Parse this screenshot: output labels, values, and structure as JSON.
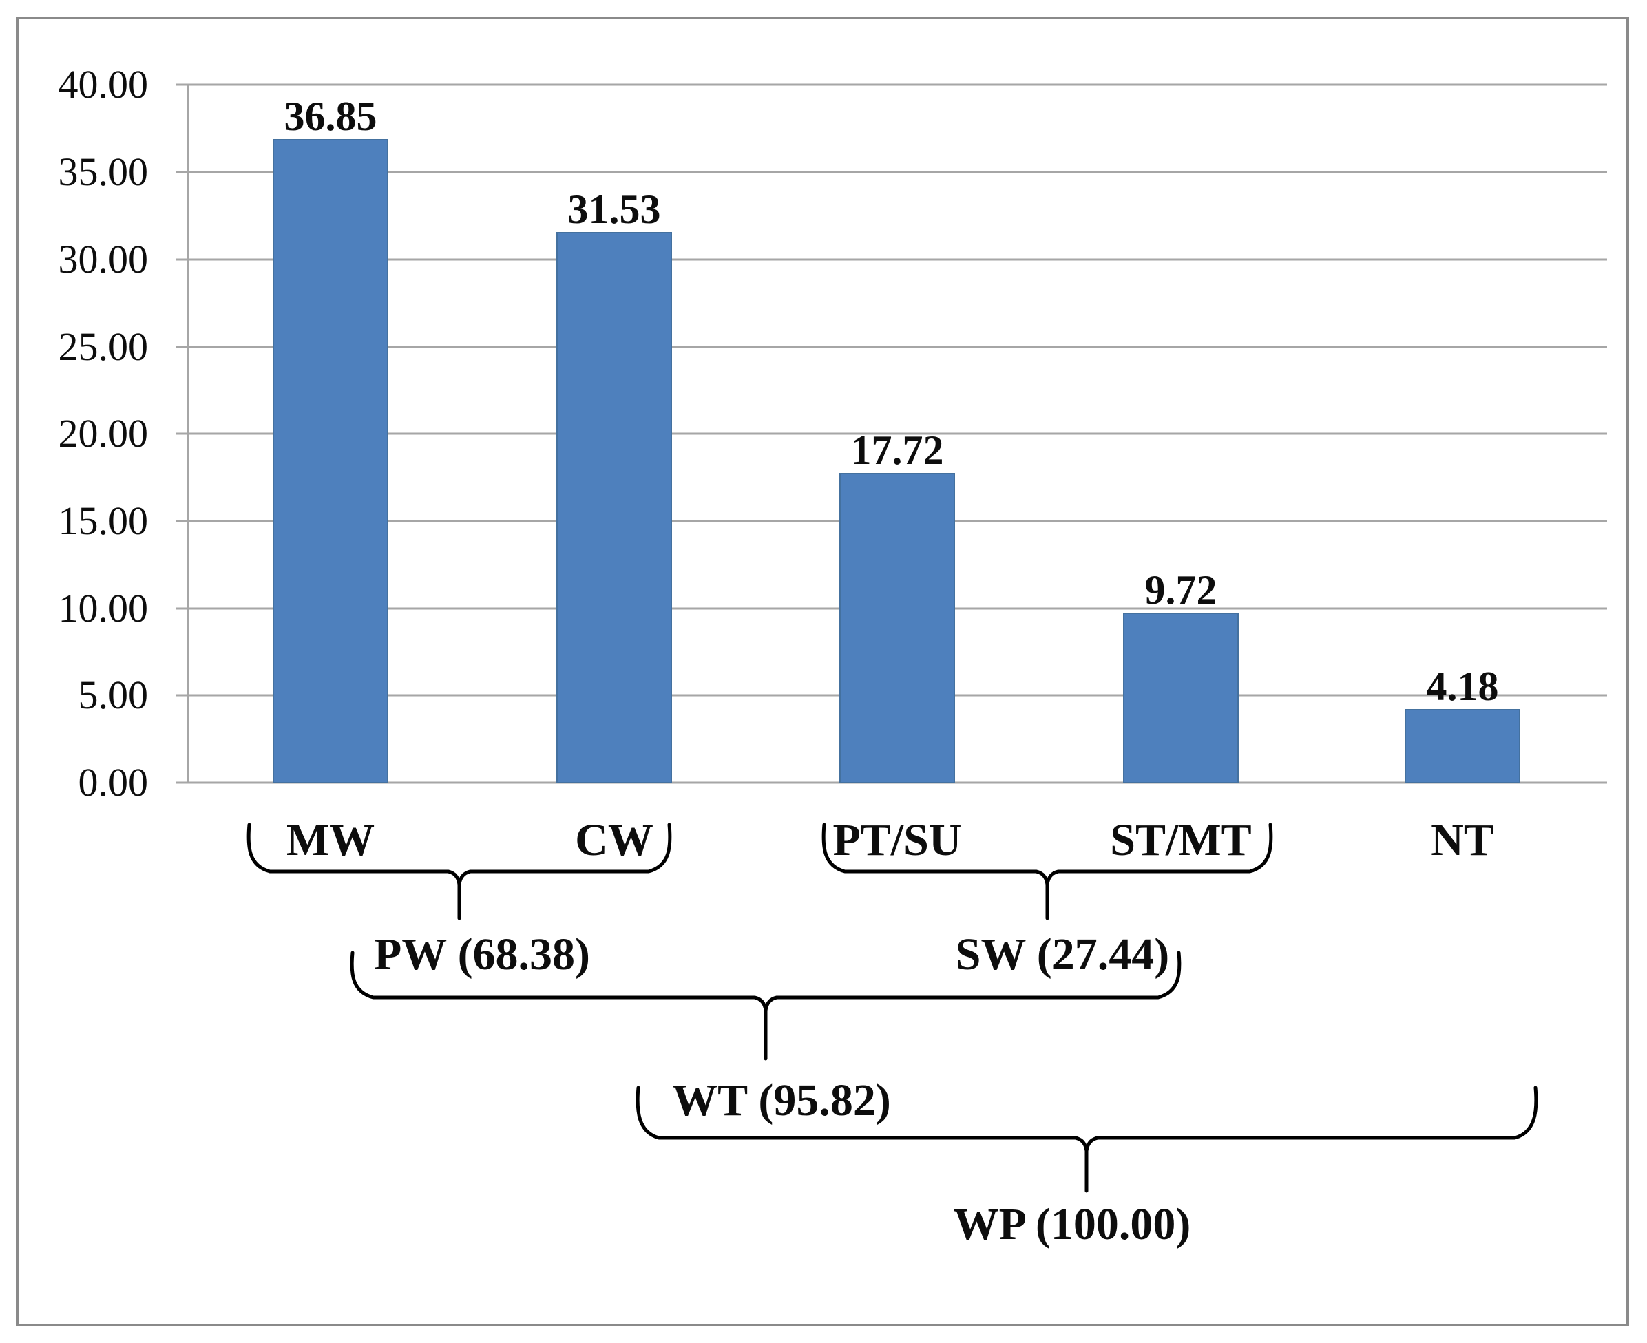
{
  "colors": {
    "bar": "#4e80bd",
    "bar_edge": "#44719f",
    "grid": "#a6a6a6",
    "axis": "#a6a6a6",
    "frame": "#8a8a8a",
    "text": "#0d0d0d",
    "brace": "#000000"
  },
  "chart_data": {
    "type": "bar",
    "categories": [
      "MW",
      "CW",
      "PT/SU",
      "ST/MT",
      "NT"
    ],
    "values": [
      36.85,
      31.53,
      17.72,
      9.72,
      4.18
    ],
    "value_labels": [
      "36.85",
      "31.53",
      "17.72",
      "9.72",
      "4.18"
    ],
    "title": "",
    "xlabel": "",
    "ylabel": "",
    "ylim": [
      0,
      40
    ],
    "ytick_step": 5,
    "ytick_labels": [
      "0.00",
      "5.00",
      "10.00",
      "15.00",
      "20.00",
      "25.00",
      "30.00",
      "35.00",
      "40.00"
    ],
    "grid": true,
    "legend": false,
    "annotations": {
      "groups": [
        {
          "name": "PW",
          "value": 68.38,
          "label": "PW (68.38)",
          "spans": [
            "MW",
            "CW"
          ]
        },
        {
          "name": "SW",
          "value": 27.44,
          "label": "SW (27.44)",
          "spans": [
            "PT/SU",
            "ST/MT"
          ]
        },
        {
          "name": "WT",
          "value": 95.82,
          "label": "WT (95.82)",
          "spans": [
            "PW",
            "SW"
          ]
        },
        {
          "name": "WP",
          "value": 100.0,
          "label": "WP (100.00)",
          "spans": [
            "WT",
            "NT"
          ]
        }
      ]
    }
  }
}
